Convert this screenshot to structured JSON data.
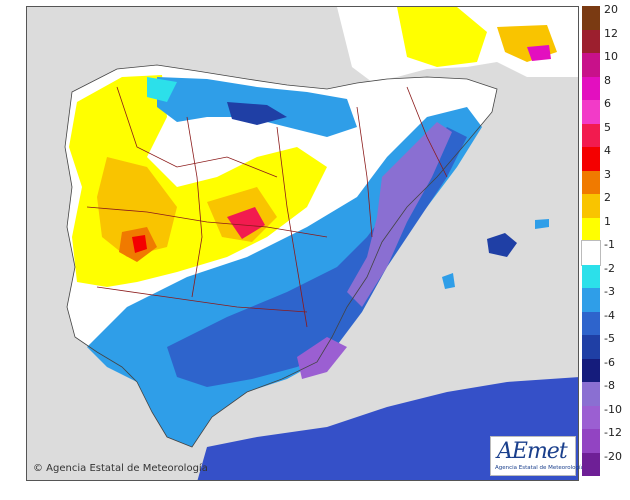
{
  "credit": "© Agencia Estatal de Meteorología",
  "logo": {
    "word": "AEmet",
    "sub": "Agencia Estatal de Meteorología"
  },
  "legend": [
    {
      "label": "20",
      "color": "#7a3a12"
    },
    {
      "label": "12",
      "color": "#9c1f2e"
    },
    {
      "label": "10",
      "color": "#c8118a"
    },
    {
      "label": "8",
      "color": "#e30fbf"
    },
    {
      "label": "6",
      "color": "#f23bc8"
    },
    {
      "label": "5",
      "color": "#f21b4f"
    },
    {
      "label": "4",
      "color": "#f40000"
    },
    {
      "label": "3",
      "color": "#f07a00"
    },
    {
      "label": "2",
      "color": "#f9c400"
    },
    {
      "label": "1",
      "color": "#ffff00"
    },
    {
      "label": "-1",
      "color": "#ffffff"
    },
    {
      "label": "-2",
      "color": "#2ce0ea"
    },
    {
      "label": "-3",
      "color": "#2f9ee8"
    },
    {
      "label": "-4",
      "color": "#2e64cc"
    },
    {
      "label": "-5",
      "color": "#1f3fa5"
    },
    {
      "label": "-6",
      "color": "#151c7c"
    },
    {
      "label": "-8",
      "color": "#8a6fd2"
    },
    {
      "label": "-10",
      "color": "#9b5fd2"
    },
    {
      "label": "-12",
      "color": "#9244c2"
    },
    {
      "label": "-20",
      "color": "#6e1f96"
    }
  ]
}
